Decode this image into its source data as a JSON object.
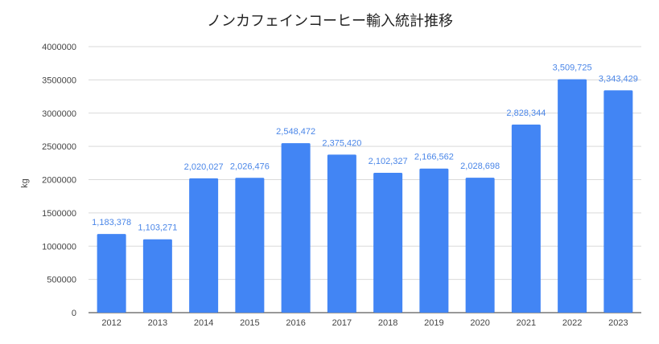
{
  "chart_data": {
    "type": "bar",
    "title": "ノンカフェインコーヒー輸入統計推移",
    "xlabel": "",
    "ylabel": "kg",
    "categories": [
      "2012",
      "2013",
      "2014",
      "2015",
      "2016",
      "2017",
      "2018",
      "2019",
      "2020",
      "2021",
      "2022",
      "2023"
    ],
    "values": [
      1183378,
      1103271,
      2020027,
      2026476,
      2548472,
      2375420,
      2102327,
      2166562,
      2028698,
      2828344,
      3509725,
      3343429
    ],
    "data_labels": [
      "1,183,378",
      "1,103,271",
      "2,020,027",
      "2,026,476",
      "2,548,472",
      "2,375,420",
      "2,102,327",
      "2,166,562",
      "2,028,698",
      "2,828,344",
      "3,509,725",
      "3,343,429"
    ],
    "ylim": [
      0,
      4000000
    ],
    "yticks": [
      "0",
      "500000",
      "1000000",
      "1500000",
      "2000000",
      "2500000",
      "3000000",
      "3500000",
      "4000000"
    ],
    "grid": true,
    "legend": "none",
    "bar_color": "#4285f4",
    "label_color": "#4a86e8"
  }
}
